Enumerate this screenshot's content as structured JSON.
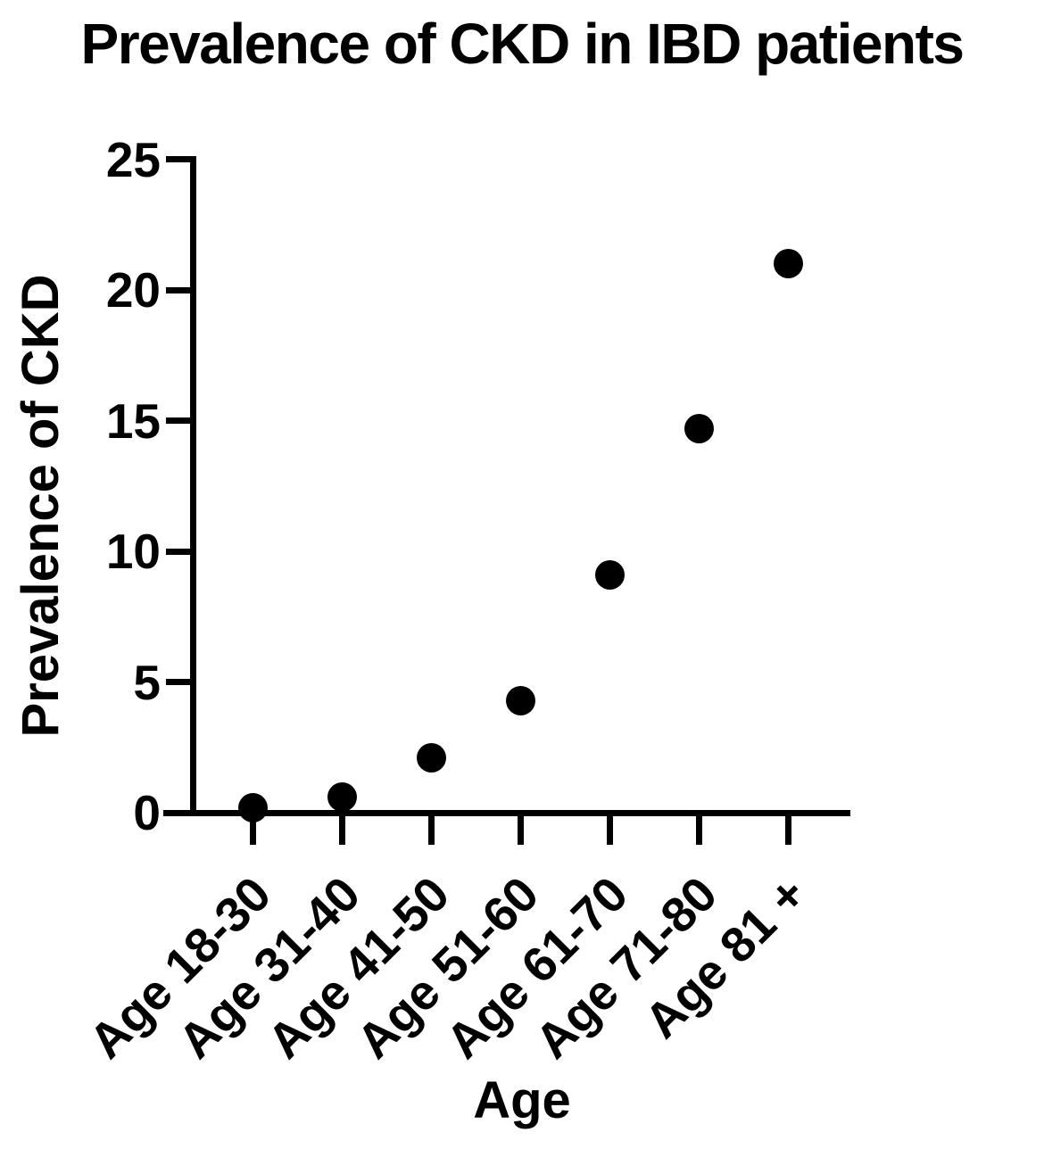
{
  "colors": {
    "foreground": "#000000",
    "background": "#ffffff",
    "marker": "#000000"
  },
  "chart_data": {
    "type": "scatter",
    "title": "Prevalence of CKD in IBD patients",
    "xlabel": "Age",
    "ylabel": "Prevalence of CKD",
    "categories": [
      "Age 18-30",
      "Age 31-40",
      "Age 41-50",
      "Age 51-60",
      "Age 61-70",
      "Age 71-80",
      "Age 81 +"
    ],
    "values": [
      0.2,
      0.6,
      2.1,
      4.3,
      9.1,
      14.7,
      21.0
    ],
    "ylim": [
      0,
      25
    ],
    "yticks": [
      0,
      5,
      10,
      15,
      20,
      25
    ],
    "grid": false,
    "legend": "none",
    "marker_shape": "filled-circle"
  }
}
